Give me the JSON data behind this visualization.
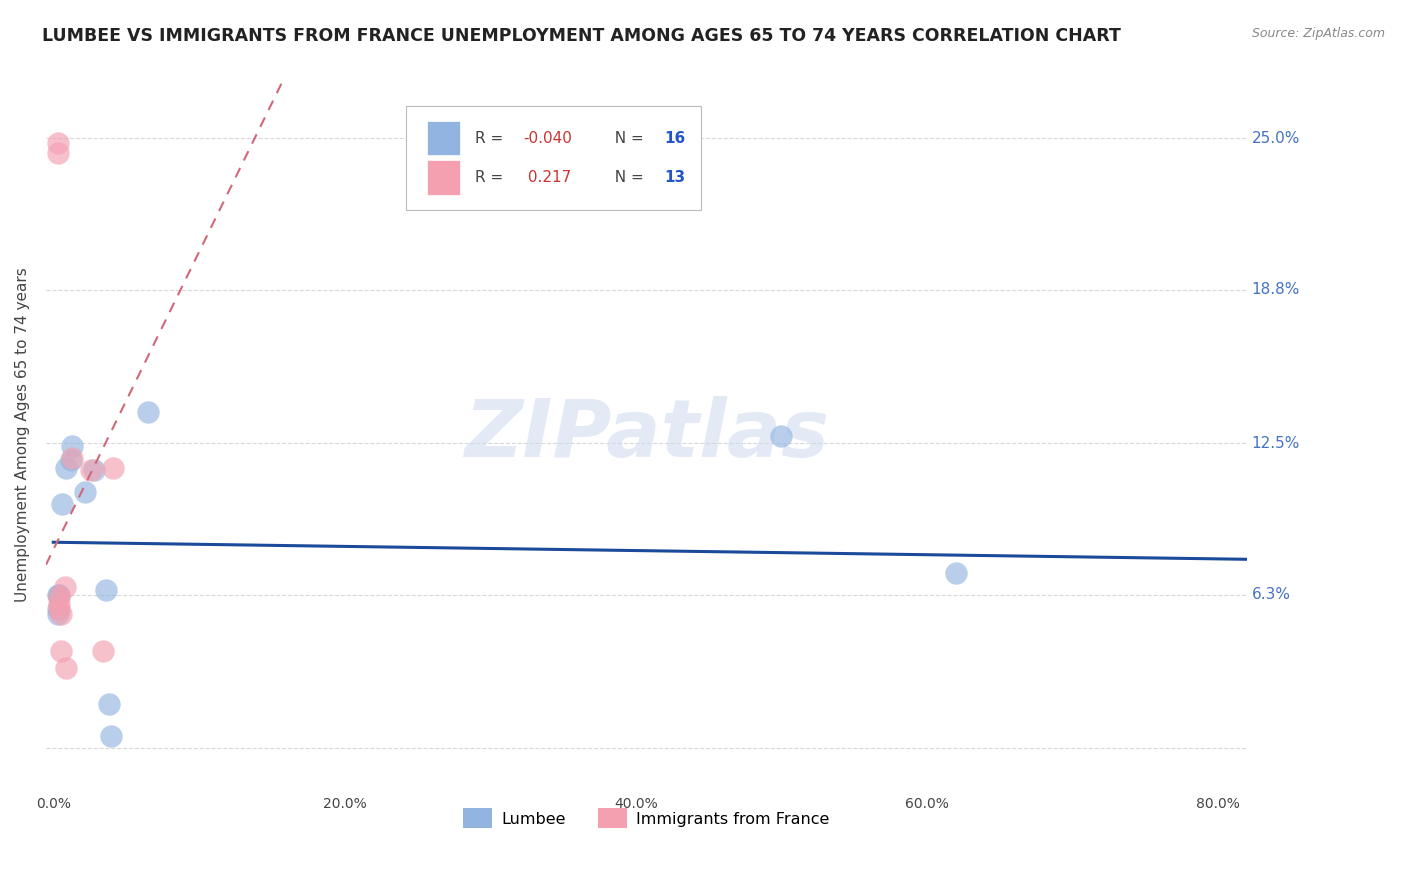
{
  "title": "LUMBEE VS IMMIGRANTS FROM FRANCE UNEMPLOYMENT AMONG AGES 65 TO 74 YEARS CORRELATION CHART",
  "source": "Source: ZipAtlas.com",
  "xlabel": "",
  "ylabel": "Unemployment Among Ages 65 to 74 years",
  "xlim": [
    -0.005,
    0.82
  ],
  "ylim": [
    -0.018,
    0.275
  ],
  "yticks": [
    0.0,
    0.063,
    0.125,
    0.188,
    0.25
  ],
  "ytick_labels": [
    "",
    "6.3%",
    "12.5%",
    "18.8%",
    "25.0%"
  ],
  "xticks": [
    0.0,
    0.2,
    0.4,
    0.6,
    0.8
  ],
  "xtick_labels": [
    "0.0%",
    "20.0%",
    "40.0%",
    "60.0%",
    "80.0%"
  ],
  "lumbee_x": [
    0.003,
    0.003,
    0.003,
    0.004,
    0.006,
    0.009,
    0.012,
    0.013,
    0.022,
    0.028,
    0.036,
    0.038,
    0.04,
    0.065,
    0.5,
    0.62
  ],
  "lumbee_y": [
    0.063,
    0.057,
    0.055,
    0.063,
    0.1,
    0.115,
    0.118,
    0.124,
    0.105,
    0.114,
    0.065,
    0.018,
    0.005,
    0.138,
    0.128,
    0.072
  ],
  "france_x": [
    0.003,
    0.003,
    0.004,
    0.004,
    0.004,
    0.005,
    0.005,
    0.008,
    0.009,
    0.013,
    0.026,
    0.034,
    0.041
  ],
  "france_y": [
    0.248,
    0.244,
    0.062,
    0.059,
    0.057,
    0.055,
    0.04,
    0.066,
    0.033,
    0.119,
    0.114,
    0.04,
    0.115
  ],
  "lumbee_color": "#92b4e0",
  "france_color": "#f4a0b0",
  "lumbee_trend_color": "#1a4a9a",
  "france_trend_color": "#d06878",
  "lumbee_R": -0.04,
  "lumbee_N": 16,
  "france_R": 0.217,
  "france_N": 13,
  "watermark_zip": "ZIP",
  "watermark_atlas": "atlas",
  "background_color": "#ffffff",
  "grid_color": "#d8d8d8"
}
